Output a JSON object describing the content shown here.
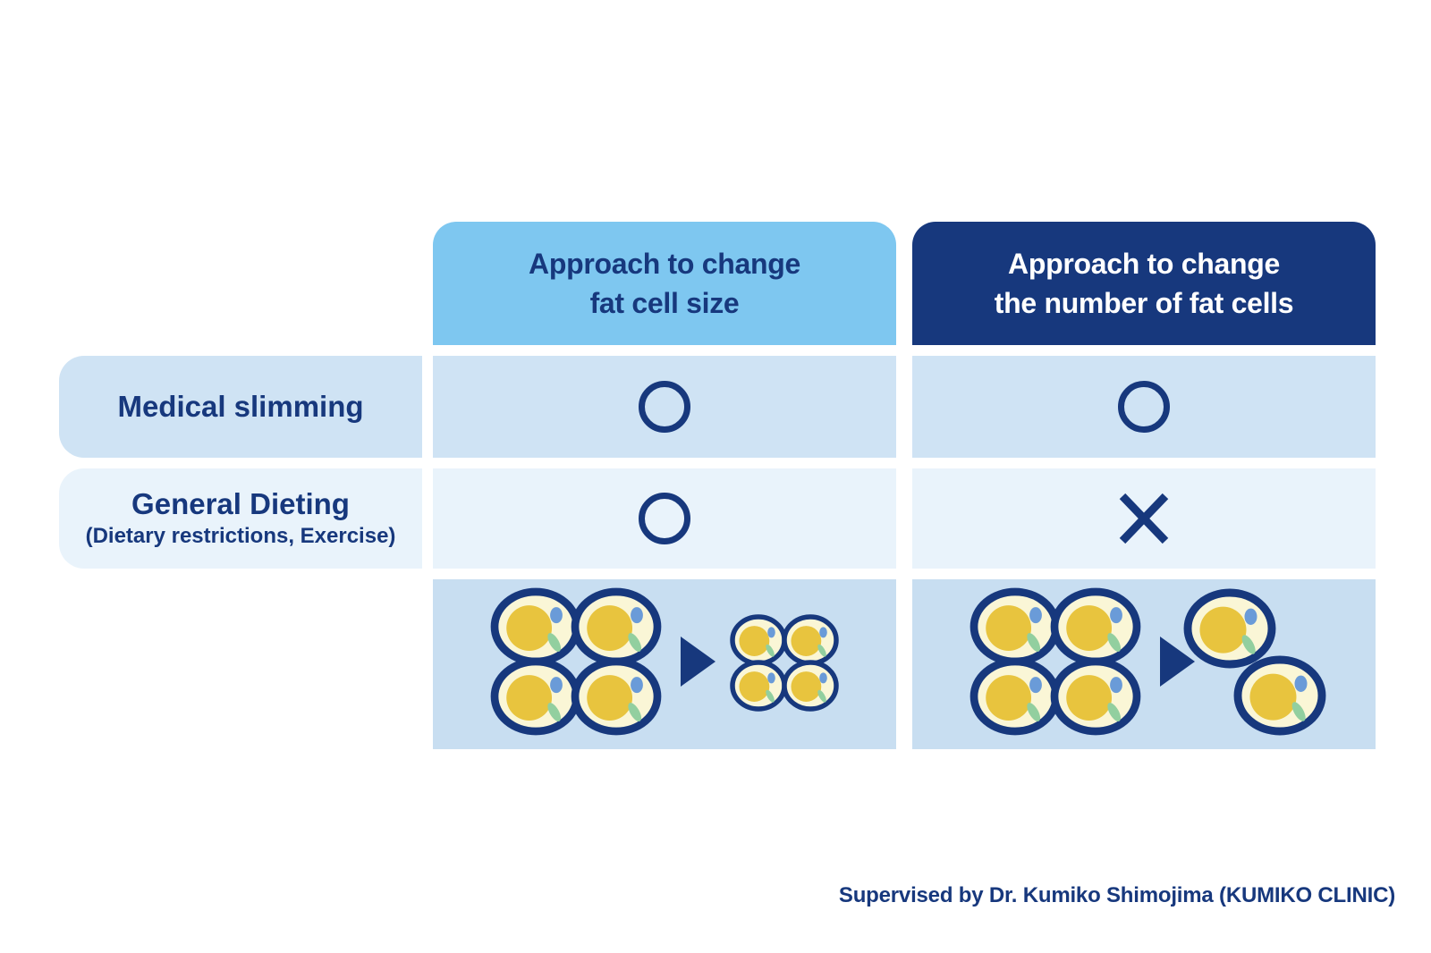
{
  "colors": {
    "background": "#ffffff",
    "navy": "#17387d",
    "sky-blue": "#7ec7f0",
    "row-blue": "#cfe3f4",
    "row-pale": "#e9f3fb",
    "row-illustration": "#c8def1",
    "header-dark-text": "#ffffff",
    "cell-cream": "#faf6d6",
    "cell-yellow": "#e8c43e",
    "cell-blue-dot": "#6a9bd8",
    "cell-green": "#92cf9f"
  },
  "header": {
    "col1": {
      "line1": "Approach to change",
      "line2": "fat cell size"
    },
    "col2": {
      "line1": "Approach to change",
      "line2": "the number of fat cells"
    }
  },
  "rows": [
    {
      "label": "Medical slimming",
      "marks": [
        "circle",
        "circle"
      ]
    },
    {
      "label": "General Dieting",
      "sublabel": "(Dietary restrictions, Exercise)",
      "marks": [
        "circle",
        "cross"
      ]
    }
  ],
  "illustrations": [
    {
      "name": "fat-cells-shrink-in-size",
      "before_count": 4,
      "before_size": "large",
      "after_count": 4,
      "after_size": "small"
    },
    {
      "name": "fat-cells-decrease-in-number",
      "before_count": 4,
      "before_size": "large",
      "after_count": 2,
      "after_size": "large"
    }
  ],
  "footer": {
    "credit": "Supervised by Dr. Kumiko Shimojima (KUMIKO CLINIC)"
  }
}
